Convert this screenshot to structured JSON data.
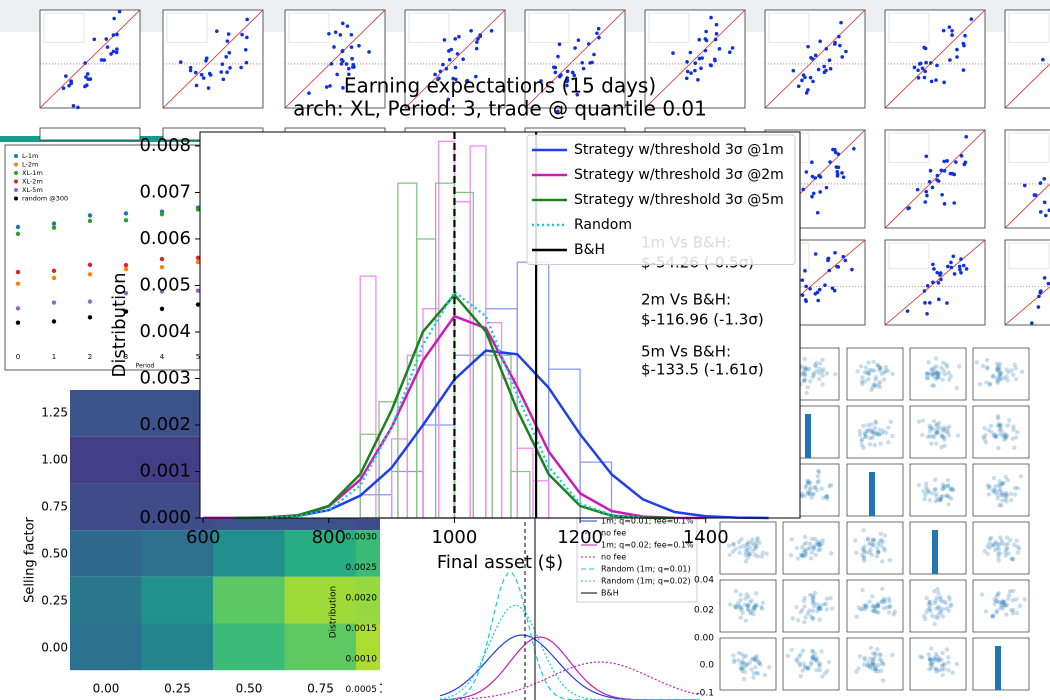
{
  "chart_data": [
    {
      "type": "distribution",
      "title": "Earning expectations (15 days)",
      "subtitle": "arch: XL, Period: 3, trade @ quantile 0.01",
      "x_label": "Final asset ($)",
      "y_label": "Distribution",
      "xlim": [
        595,
        1550
      ],
      "ylim": [
        0,
        0.0083
      ],
      "xticks": [
        600,
        800,
        1000,
        1200,
        1400
      ],
      "yticks": [
        {
          "value": 0,
          "label": "0.000"
        },
        {
          "value": 0.001,
          "label": "0.001"
        },
        {
          "value": 0.002,
          "label": "0.002"
        },
        {
          "value": 0.003,
          "label": "0.003"
        },
        {
          "value": 0.004,
          "label": "0.004"
        },
        {
          "value": 0.005,
          "label": "0.005"
        },
        {
          "value": 0.006,
          "label": "0.006"
        },
        {
          "value": 0.007,
          "label": "0.007"
        },
        {
          "value": 0.008,
          "label": "0.008"
        }
      ],
      "legend": "upper right",
      "histograms": [
        {
          "color": "#8a9cf4",
          "bins": [
            850,
            900,
            950,
            1000,
            1050,
            1100,
            1150,
            1200,
            1250
          ],
          "values": [
            0.0005,
            0.001,
            0.002,
            0.0035,
            0.0045,
            0.0055,
            0.0032,
            0.0012
          ]
        },
        {
          "color": "#f28cf2",
          "bins": [
            850,
            875,
            900,
            925,
            950,
            975,
            1000,
            1025,
            1050,
            1075,
            1100,
            1125,
            1150
          ],
          "values": [
            0.0052,
            0.0,
            0.0017,
            0.0035,
            0.0045,
            0.0081,
            0.0068,
            0.008,
            0.0042,
            0.003,
            0.0015,
            0.0008
          ]
        },
        {
          "color": "#86c486",
          "bins": [
            850,
            880,
            910,
            940,
            970,
            1000,
            1030,
            1060,
            1090,
            1120
          ],
          "values": [
            0.0018,
            0.0025,
            0.0072,
            0.006,
            0.0072,
            0.007,
            0.0035,
            0.0035,
            0.001
          ]
        }
      ],
      "series": [
        {
          "name": "Strategy w/threshold 3σ @1m",
          "color": "#1f3fe8",
          "style": "solid",
          "x": [
            600,
            650,
            700,
            750,
            800,
            850,
            900,
            950,
            1000,
            1050,
            1100,
            1150,
            1200,
            1250,
            1300,
            1350,
            1400,
            1450,
            1500
          ],
          "values": [
            0.0,
            0.0,
            1.15e-05,
            4.9e-05,
            0.00017,
            0.00048,
            0.00108,
            0.002,
            0.00298,
            0.0036,
            0.00352,
            0.0028,
            0.0018,
            0.00094,
            0.0004,
            0.00013,
            3.7e-05,
            8.4e-06,
            0.0
          ]
        },
        {
          "name": "Strategy w/threshold 3σ @2m",
          "color": "#c81cb4",
          "style": "solid",
          "x": [
            600,
            650,
            700,
            750,
            800,
            850,
            900,
            950,
            1000,
            1050,
            1100,
            1150,
            1200,
            1250,
            1300,
            1350,
            1400
          ],
          "values": [
            0.0,
            1.2e-06,
            9.6e-06,
            5.8e-05,
            0.00025,
            0.00082,
            0.00195,
            0.00339,
            0.00434,
            0.00408,
            0.00282,
            0.00143,
            0.00053,
            0.00015,
            3e-05,
            4e-06,
            0.0
          ]
        },
        {
          "name": "Strategy w/threshold 3σ @5m",
          "color": "#18821c",
          "style": "solid",
          "x": [
            650,
            700,
            750,
            800,
            850,
            900,
            950,
            1000,
            1050,
            1100,
            1150,
            1200,
            1250,
            1300,
            1350
          ],
          "values": [
            0.0,
            7e-06,
            5.1e-05,
            0.00026,
            0.00094,
            0.00232,
            0.00401,
            0.0048,
            0.00401,
            0.00232,
            0.00094,
            0.00026,
            5.1e-05,
            7e-06,
            0.0
          ]
        },
        {
          "name": "Random",
          "color": "#1ccad4",
          "style": "dotted",
          "x": [
            700,
            750,
            800,
            850,
            900,
            950,
            1000,
            1050,
            1100,
            1150,
            1200,
            1250,
            1300
          ],
          "values": [
            3.2e-06,
            2.8e-05,
            0.00017,
            0.0007,
            0.00195,
            0.00373,
            0.00486,
            0.00434,
            0.00264,
            0.0011,
            0.00031,
            6.1e-05,
            8e-06
          ]
        }
      ],
      "vlines": [
        {
          "name": "B&H",
          "x": 1130,
          "color": "#000000",
          "style": "solid"
        },
        {
          "x": 1000,
          "color": "#000000",
          "style": "dashed"
        }
      ],
      "annotations": [
        "1m Vs B&H:",
        "$-54.26 (-0.5σ)",
        "2m Vs B&H:",
        "$-116.96 (-1.3σ)",
        "5m Vs B&H:",
        "$-133.5 (-1.61σ)"
      ]
    }
  ],
  "background": {
    "heatmap": {
      "y_label": "Selling factor",
      "yticks": [
        "1.25",
        "1.00",
        "0.75",
        "0.50",
        "0.25",
        "0.00"
      ],
      "xticks": [
        "0.00",
        "0.25",
        "0.50",
        "0.75",
        "1.00"
      ]
    },
    "small_dist": {
      "y_label": "Distribution",
      "yticks": [
        "0.0030",
        "0.0025",
        "0.0020",
        "0.0015",
        "0.0010",
        "0.0005"
      ],
      "legend": [
        "1m; q=0.01; fee=0.1%",
        "no fee",
        "1m; q=0.02; fee=0.1%",
        "no fee",
        "Random (1m; q=0.01)",
        "Random (1m; q=0.02)",
        "B&H"
      ]
    },
    "left_panel": {
      "legend": [
        "L-1m",
        "L-2m",
        "XL-1m",
        "XL-2m",
        "XL-5m",
        "random @300"
      ],
      "xticks": [
        "0",
        "1",
        "2",
        "3",
        "4",
        "5"
      ],
      "x_label": "Period"
    },
    "pairplot": {
      "yticks": [
        "0.04",
        "0.02",
        "0.00",
        "0.0",
        "-0.1"
      ]
    }
  }
}
